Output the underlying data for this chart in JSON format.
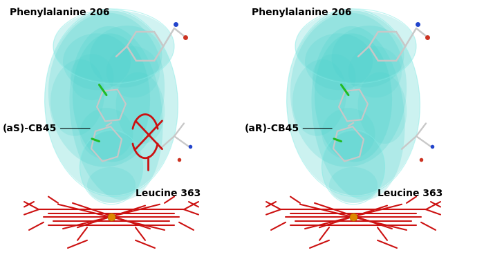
{
  "figure_width": 7.0,
  "figure_height": 3.72,
  "dpi": 100,
  "background_color": "#ffffff",
  "left_cb45_label": "(aS)-CB45",
  "right_cb45_label": "(aR)-CB45",
  "phenylalanine_label": "Phenylalanine 206",
  "leucine_label": "Leucine 363",
  "label_fontsize": 10,
  "label_fontweight": "bold",
  "teal": "#48D1CC",
  "red": "#CC1111",
  "ring_gray": "#c8c8c8",
  "green_cl": "#22bb22",
  "blue_n": "#2244cc",
  "red_o": "#cc3322",
  "iron_orange": "#dd8800"
}
